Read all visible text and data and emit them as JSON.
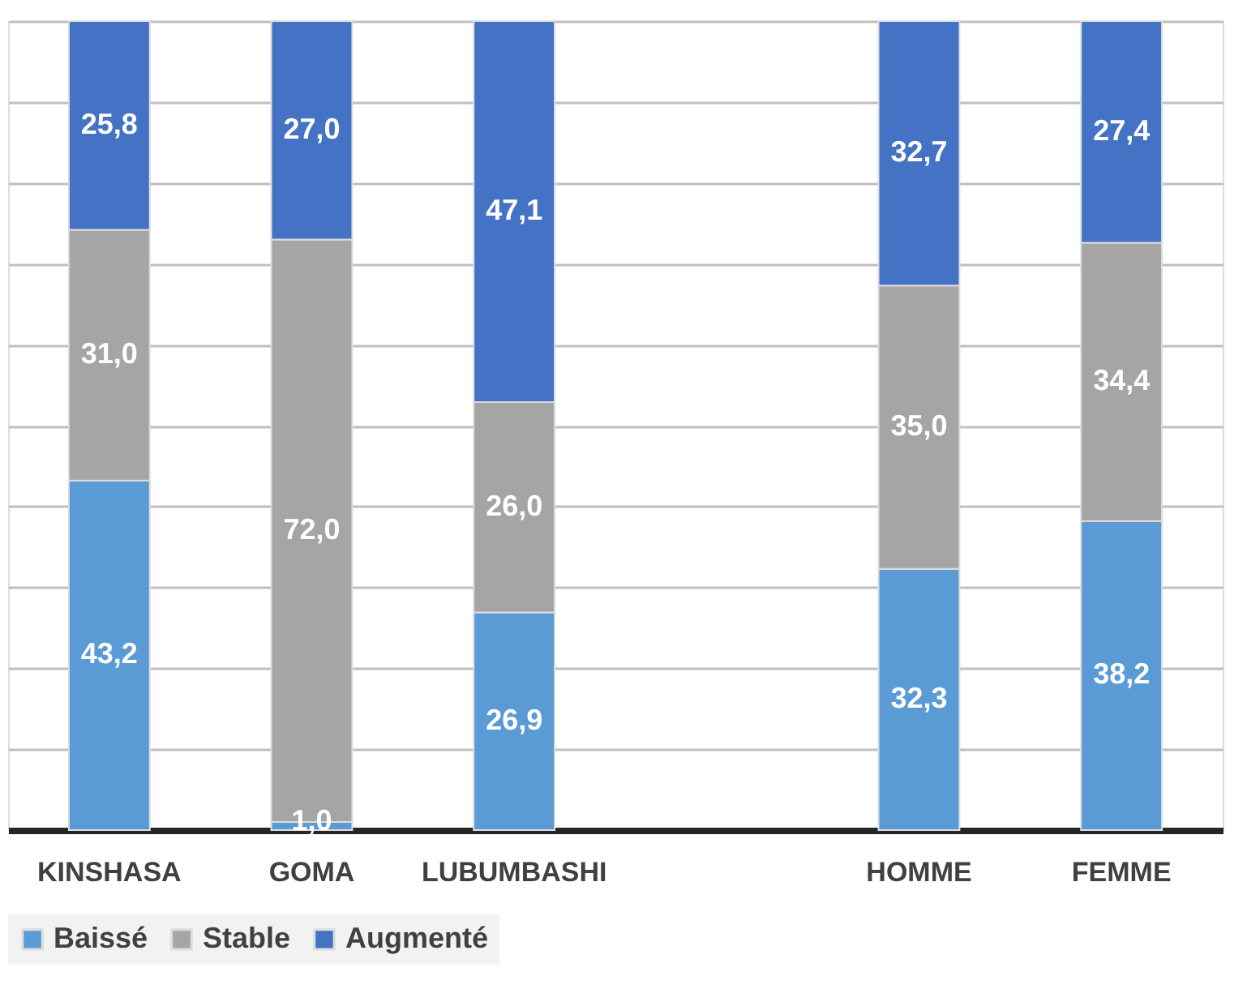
{
  "chart_data": {
    "type": "bar",
    "stacked": true,
    "categories": [
      "KINSHASA",
      "GOMA",
      "LUBUMBASHI",
      null,
      "HOMME",
      "FEMME"
    ],
    "series": [
      {
        "name": "Baissé",
        "color": "#5b9bd5",
        "values": [
          43.2,
          1.0,
          26.9,
          null,
          32.3,
          38.2
        ],
        "value_labels": [
          "43,2",
          "1,0",
          "26,9",
          null,
          "32,3",
          "38,2"
        ]
      },
      {
        "name": "Stable",
        "color": "#a5a5a5",
        "values": [
          31.0,
          72.0,
          26.0,
          null,
          35.0,
          34.4
        ],
        "value_labels": [
          "31,0",
          "72,0",
          "26,0",
          null,
          "35,0",
          "34,4"
        ]
      },
      {
        "name": "Augmenté",
        "color": "#4472c4",
        "values": [
          25.8,
          27.0,
          47.1,
          null,
          32.7,
          27.4
        ],
        "value_labels": [
          "25,8",
          "27,0",
          "47,1",
          null,
          "32,7",
          "27,4"
        ]
      }
    ],
    "ylim": [
      0,
      100
    ],
    "tick_labels": "x",
    "grid": "y",
    "legend": "bottom"
  }
}
